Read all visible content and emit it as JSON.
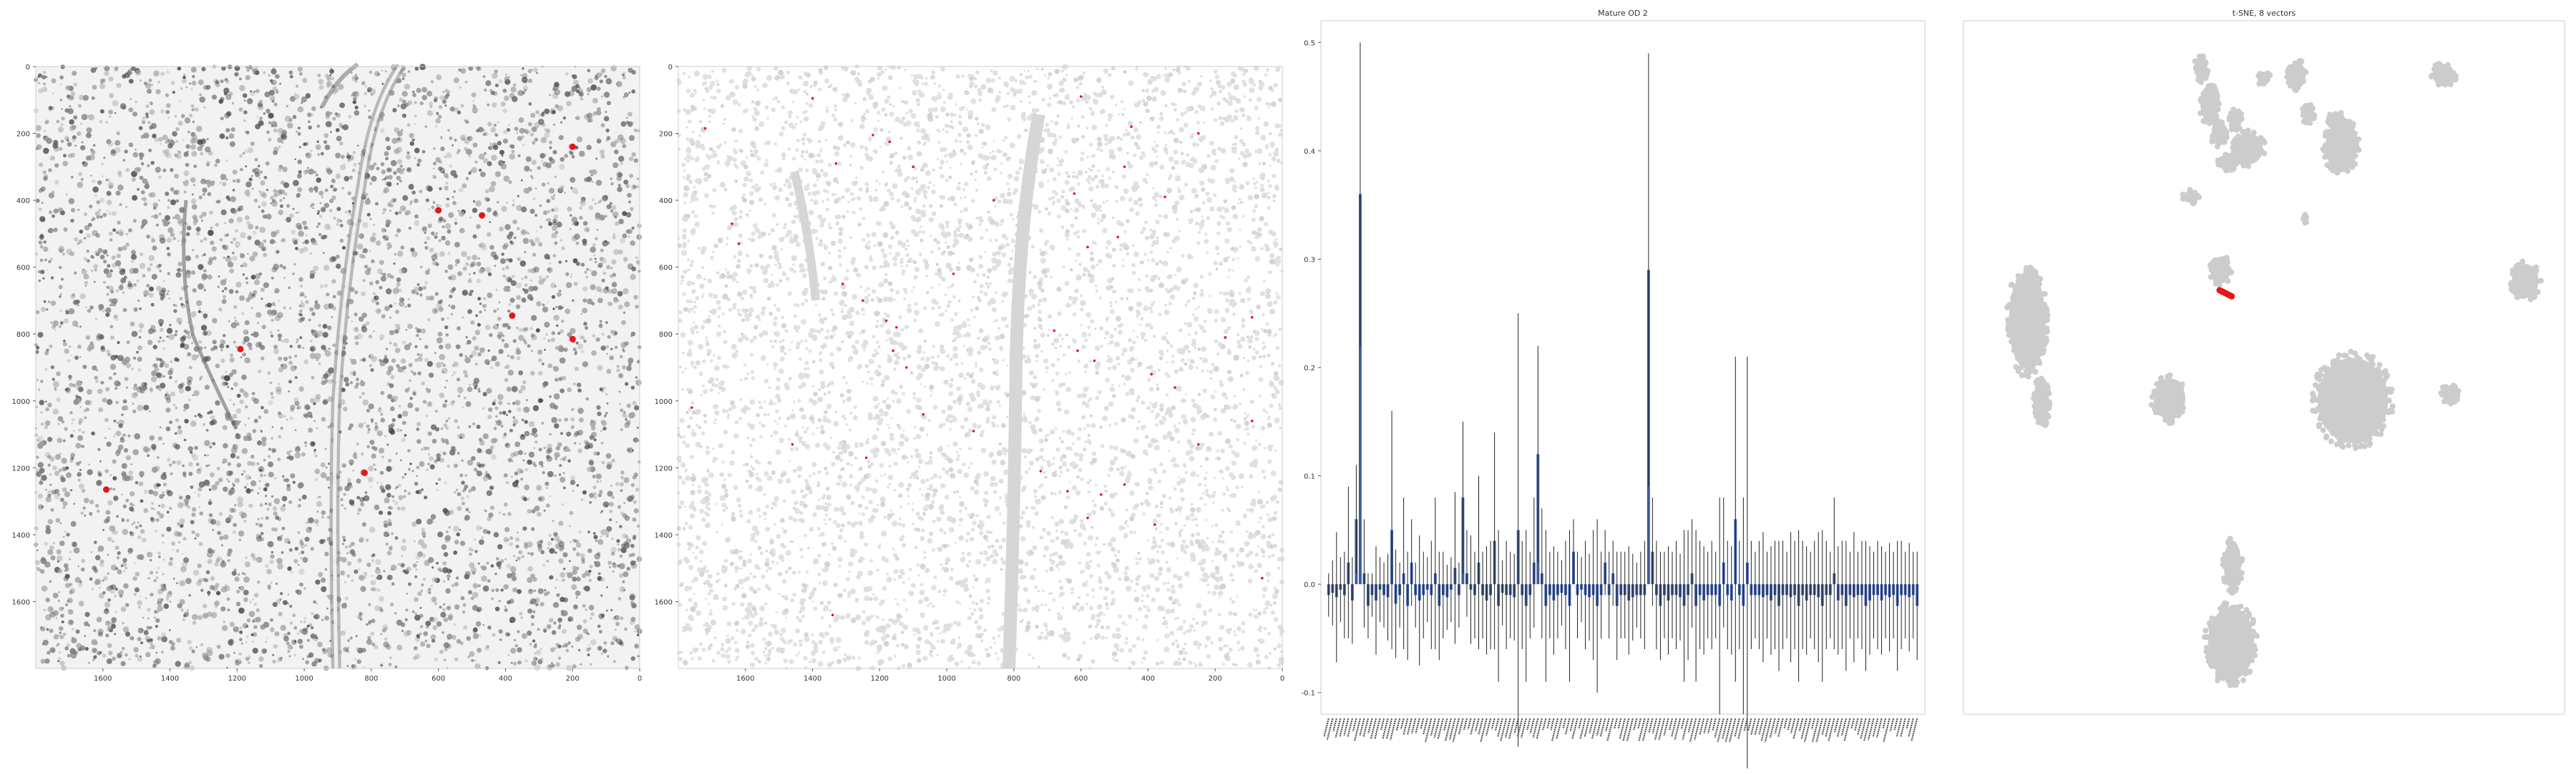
{
  "figure": {
    "background": "#ffffff",
    "frame_color": "#cccccc",
    "text_color": "#333333"
  },
  "chart_data": [
    {
      "type": "scatter",
      "title": "",
      "description": "Grayscale tissue section image with red highlighted cell markers",
      "xlabel": "",
      "ylabel": "",
      "xlim": [
        1800,
        0
      ],
      "ylim": [
        1800,
        0
      ],
      "x_ticks": [
        1600,
        1400,
        1200,
        1000,
        800,
        600,
        400,
        200,
        0
      ],
      "y_ticks": [
        0,
        200,
        400,
        600,
        800,
        1000,
        1200,
        1400,
        1600
      ],
      "marker_color": "#e8141c",
      "points": [
        {
          "x": 200,
          "y": 240
        },
        {
          "x": 600,
          "y": 430
        },
        {
          "x": 470,
          "y": 445
        },
        {
          "x": 380,
          "y": 745
        },
        {
          "x": 200,
          "y": 815
        },
        {
          "x": 1190,
          "y": 845
        },
        {
          "x": 820,
          "y": 1215
        },
        {
          "x": 1590,
          "y": 1265
        }
      ]
    },
    {
      "type": "scatter",
      "title": "",
      "description": "Segmented cell map (light gray) with red dots for cells of the selected cluster",
      "xlabel": "",
      "ylabel": "",
      "xlim": [
        1800,
        0
      ],
      "ylim": [
        1800,
        0
      ],
      "x_ticks": [
        1600,
        1400,
        1200,
        1000,
        800,
        600,
        400,
        200,
        0
      ],
      "y_ticks": [
        0,
        200,
        400,
        600,
        800,
        1000,
        1200,
        1400,
        1600
      ],
      "background_color": "#e3e3e3",
      "marker_color": "#e8141c",
      "points": [
        {
          "x": 1720,
          "y": 185
        },
        {
          "x": 1400,
          "y": 95
        },
        {
          "x": 1220,
          "y": 205
        },
        {
          "x": 1170,
          "y": 225
        },
        {
          "x": 600,
          "y": 90
        },
        {
          "x": 450,
          "y": 180
        },
        {
          "x": 250,
          "y": 200
        },
        {
          "x": 1640,
          "y": 470
        },
        {
          "x": 1620,
          "y": 530
        },
        {
          "x": 1330,
          "y": 290
        },
        {
          "x": 1100,
          "y": 300
        },
        {
          "x": 620,
          "y": 380
        },
        {
          "x": 580,
          "y": 540
        },
        {
          "x": 490,
          "y": 510
        },
        {
          "x": 470,
          "y": 300
        },
        {
          "x": 350,
          "y": 390
        },
        {
          "x": 1310,
          "y": 650
        },
        {
          "x": 1250,
          "y": 700
        },
        {
          "x": 1180,
          "y": 760
        },
        {
          "x": 1150,
          "y": 780
        },
        {
          "x": 1160,
          "y": 850
        },
        {
          "x": 680,
          "y": 790
        },
        {
          "x": 610,
          "y": 850
        },
        {
          "x": 560,
          "y": 880
        },
        {
          "x": 390,
          "y": 920
        },
        {
          "x": 320,
          "y": 960
        },
        {
          "x": 170,
          "y": 810
        },
        {
          "x": 90,
          "y": 750
        },
        {
          "x": 1120,
          "y": 900
        },
        {
          "x": 1070,
          "y": 1040
        },
        {
          "x": 920,
          "y": 1090
        },
        {
          "x": 1460,
          "y": 1130
        },
        {
          "x": 1240,
          "y": 1170
        },
        {
          "x": 720,
          "y": 1210
        },
        {
          "x": 640,
          "y": 1270
        },
        {
          "x": 540,
          "y": 1280
        },
        {
          "x": 470,
          "y": 1250
        },
        {
          "x": 380,
          "y": 1370
        },
        {
          "x": 580,
          "y": 1350
        },
        {
          "x": 250,
          "y": 1130
        },
        {
          "x": 90,
          "y": 1060
        },
        {
          "x": 60,
          "y": 1530
        },
        {
          "x": 1340,
          "y": 1640
        },
        {
          "x": 1760,
          "y": 1020
        },
        {
          "x": 860,
          "y": 400
        },
        {
          "x": 980,
          "y": 620
        }
      ]
    },
    {
      "type": "bar",
      "title": "Mature OD 2",
      "xlabel": "",
      "ylabel": "",
      "ylim": [
        -0.12,
        0.52
      ],
      "y_ticks": [
        -0.1,
        0.0,
        0.1,
        0.2,
        0.3,
        0.4,
        0.5
      ],
      "bar_color": "#3b5aa0",
      "errorbar_color": "#222222",
      "n_categories": 150,
      "values": [
        -0.01,
        -0.008,
        -0.012,
        -0.005,
        -0.01,
        0.02,
        -0.015,
        0.06,
        0.36,
        0.01,
        -0.02,
        -0.01,
        -0.015,
        -0.005,
        -0.01,
        -0.012,
        0.05,
        -0.018,
        -0.01,
        0.01,
        -0.02,
        0.02,
        -0.01,
        -0.015,
        -0.01,
        -0.005,
        -0.01,
        0.01,
        -0.02,
        -0.01,
        -0.012,
        -0.005,
        0.015,
        -0.01,
        0.08,
        0.01,
        -0.005,
        -0.01,
        0.02,
        -0.01,
        -0.015,
        -0.01,
        0.04,
        -0.02,
        -0.008,
        -0.01,
        -0.01,
        -0.012,
        0.05,
        -0.01,
        -0.02,
        -0.01,
        0.02,
        0.12,
        0.01,
        -0.02,
        -0.01,
        -0.015,
        -0.01,
        -0.008,
        -0.01,
        -0.02,
        0.03,
        -0.01,
        -0.005,
        -0.01,
        -0.012,
        -0.01,
        -0.02,
        -0.01,
        0.02,
        -0.01,
        0.01,
        -0.02,
        -0.01,
        -0.01,
        -0.015,
        -0.012,
        -0.01,
        -0.01,
        -0.01,
        0.29,
        0.03,
        -0.01,
        -0.02,
        -0.01,
        -0.015,
        -0.01,
        -0.01,
        -0.012,
        -0.02,
        -0.01,
        0.01,
        -0.02,
        -0.01,
        -0.015,
        -0.01,
        -0.01,
        -0.01,
        -0.02,
        0.02,
        -0.01,
        -0.015,
        0.06,
        -0.01,
        -0.02,
        0.02,
        -0.01,
        -0.01,
        -0.01,
        -0.012,
        -0.01,
        -0.015,
        -0.01,
        -0.02,
        -0.01,
        -0.01,
        -0.012,
        -0.01,
        -0.02,
        -0.01,
        -0.015,
        -0.01,
        -0.01,
        -0.012,
        -0.02,
        -0.01,
        -0.01,
        0.01,
        -0.015,
        -0.01,
        -0.02,
        -0.01,
        -0.012,
        -0.01,
        -0.01,
        -0.02,
        -0.015,
        -0.01,
        -0.01,
        -0.015,
        -0.01,
        -0.012,
        -0.01,
        -0.02,
        -0.01,
        -0.01,
        -0.012,
        -0.01,
        -0.02
      ],
      "errors": [
        0.02,
        0.03,
        0.06,
        0.03,
        0.04,
        0.07,
        0.04,
        0.05,
        0.14,
        0.05,
        0.03,
        0.02,
        0.05,
        0.03,
        0.03,
        0.04,
        0.11,
        0.05,
        0.03,
        0.07,
        0.05,
        0.04,
        0.03,
        0.06,
        0.04,
        0.03,
        0.05,
        0.07,
        0.05,
        0.04,
        0.03,
        0.03,
        0.07,
        0.03,
        0.07,
        0.04,
        0.05,
        0.04,
        0.08,
        0.04,
        0.05,
        0.05,
        0.1,
        0.07,
        0.03,
        0.05,
        0.04,
        0.04,
        0.2,
        0.05,
        0.07,
        0.04,
        0.06,
        0.1,
        0.06,
        0.07,
        0.04,
        0.05,
        0.04,
        0.03,
        0.05,
        0.07,
        0.03,
        0.04,
        0.03,
        0.05,
        0.04,
        0.06,
        0.08,
        0.04,
        0.03,
        0.04,
        0.03,
        0.05,
        0.04,
        0.04,
        0.05,
        0.04,
        0.03,
        0.04,
        0.05,
        0.2,
        0.05,
        0.05,
        0.05,
        0.04,
        0.05,
        0.04,
        0.05,
        0.04,
        0.07,
        0.06,
        0.05,
        0.07,
        0.05,
        0.05,
        0.04,
        0.05,
        0.04,
        0.1,
        0.06,
        0.05,
        0.05,
        0.15,
        0.05,
        0.1,
        0.19,
        0.05,
        0.04,
        0.05,
        0.06,
        0.04,
        0.05,
        0.05,
        0.06,
        0.05,
        0.04,
        0.06,
        0.05,
        0.07,
        0.05,
        0.05,
        0.04,
        0.05,
        0.06,
        0.07,
        0.05,
        0.04,
        0.07,
        0.05,
        0.05,
        0.06,
        0.04,
        0.06,
        0.04,
        0.05,
        0.06,
        0.05,
        0.04,
        0.05,
        0.05,
        0.04,
        0.05,
        0.04,
        0.06,
        0.05,
        0.04,
        0.05,
        0.04,
        0.05
      ]
    },
    {
      "type": "scatter",
      "title": "t-SNE, 8 vectors",
      "xlabel": "",
      "ylabel": "",
      "background_color": "#cccccc",
      "highlight_color": "#e8141c"
    }
  ]
}
